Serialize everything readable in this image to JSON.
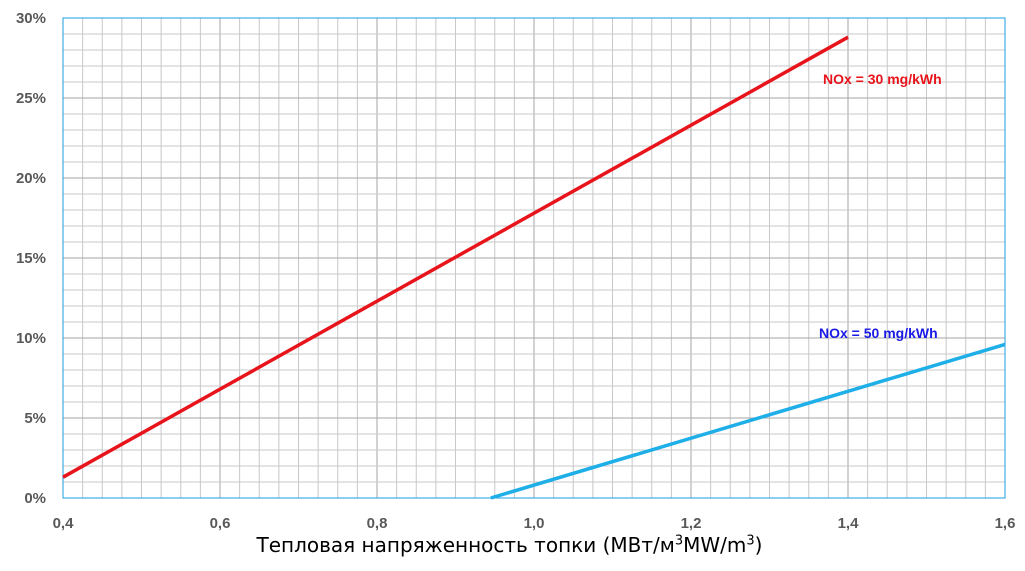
{
  "chart_data": {
    "type": "line",
    "title": "",
    "xlabel": {
      "prefix": "Тепловая напряженность топки  (МВт/м",
      "sup1": "3",
      "middle": "MW/m",
      "sup2": "3",
      "suffix": ")"
    },
    "ylabel": "",
    "xlim": [
      0.4,
      1.6
    ],
    "ylim": [
      0,
      30
    ],
    "x_ticks": [
      0.4,
      0.6,
      0.8,
      1.0,
      1.2,
      1.4,
      1.6
    ],
    "x_tick_labels": [
      "0,4",
      "0,6",
      "0,8",
      "1,0",
      "1,2",
      "1,4",
      "1,6"
    ],
    "y_ticks": [
      0,
      5,
      10,
      15,
      20,
      25,
      30
    ],
    "y_tick_labels": [
      "0%",
      "5%",
      "10%",
      "15%",
      "20%",
      "25%",
      "30%"
    ],
    "grid": true,
    "series": [
      {
        "name": "NOx = 30 mg/kWh",
        "color": "#e8141b",
        "points": [
          [
            0.4,
            1.3
          ],
          [
            1.4,
            28.8
          ]
        ]
      },
      {
        "name": "NOx = 50 mg/kWh",
        "color": "#1eaee8",
        "label_color": "#1a1ae6",
        "points": [
          [
            0.945,
            0.0
          ],
          [
            1.6,
            9.6
          ]
        ]
      }
    ]
  }
}
